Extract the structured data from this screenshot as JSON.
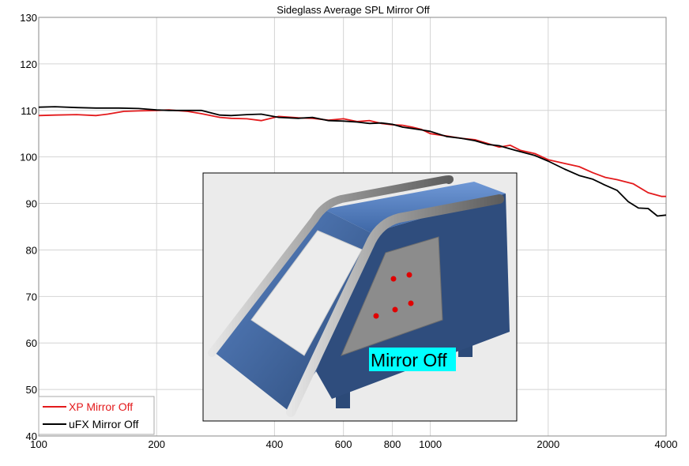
{
  "chart_data": {
    "type": "line",
    "title": "Sideglass Average SPL Mirror Off",
    "xlabel": "",
    "ylabel": "",
    "x_scale": "log",
    "xlim": [
      100,
      4000
    ],
    "ylim": [
      40,
      130
    ],
    "x_ticks": [
      100,
      200,
      400,
      600,
      800,
      1000,
      2000,
      4000
    ],
    "x_tick_labels": [
      "100",
      "200",
      "400",
      "600",
      "800",
      "1000",
      "2000",
      "4000"
    ],
    "y_ticks": [
      40,
      50,
      60,
      70,
      80,
      90,
      100,
      110,
      120,
      130
    ],
    "y_tick_labels": [
      "40",
      "50",
      "60",
      "70",
      "80",
      "90",
      "100",
      "110",
      "120",
      "130"
    ],
    "grid": true,
    "legend": "bottom-left",
    "series": [
      {
        "name": "XP Mirror Off",
        "color": "#e31a1c",
        "points": [
          [
            100,
            108.9
          ],
          [
            110,
            109.0
          ],
          [
            125,
            109.1
          ],
          [
            140,
            108.9
          ],
          [
            150,
            109.2
          ],
          [
            165,
            109.8
          ],
          [
            180,
            109.9
          ],
          [
            200,
            110.0
          ],
          [
            215,
            110.1
          ],
          [
            240,
            109.8
          ],
          [
            260,
            109.3
          ],
          [
            290,
            108.5
          ],
          [
            310,
            108.3
          ],
          [
            340,
            108.2
          ],
          [
            370,
            107.8
          ],
          [
            410,
            108.7
          ],
          [
            460,
            108.4
          ],
          [
            500,
            108.3
          ],
          [
            550,
            107.9
          ],
          [
            600,
            108.2
          ],
          [
            650,
            107.6
          ],
          [
            700,
            107.8
          ],
          [
            750,
            107.2
          ],
          [
            800,
            106.9
          ],
          [
            850,
            106.8
          ],
          [
            900,
            106.4
          ],
          [
            950,
            105.9
          ],
          [
            1000,
            105.0
          ],
          [
            1100,
            104.5
          ],
          [
            1200,
            104.0
          ],
          [
            1300,
            103.7
          ],
          [
            1400,
            102.9
          ],
          [
            1500,
            102.1
          ],
          [
            1600,
            102.5
          ],
          [
            1700,
            101.4
          ],
          [
            1850,
            100.7
          ],
          [
            2000,
            99.4
          ],
          [
            2200,
            98.6
          ],
          [
            2400,
            97.9
          ],
          [
            2600,
            96.6
          ],
          [
            2800,
            95.6
          ],
          [
            3000,
            95.1
          ],
          [
            3300,
            94.2
          ],
          [
            3600,
            92.3
          ],
          [
            3900,
            91.5
          ],
          [
            4000,
            91.5
          ]
        ]
      },
      {
        "name": "uFX Mirror Off",
        "color": "#000000",
        "points": [
          [
            100,
            110.7
          ],
          [
            110,
            110.8
          ],
          [
            125,
            110.6
          ],
          [
            140,
            110.5
          ],
          [
            160,
            110.5
          ],
          [
            180,
            110.4
          ],
          [
            200,
            110.1
          ],
          [
            215,
            110.0
          ],
          [
            240,
            110.0
          ],
          [
            260,
            110.0
          ],
          [
            290,
            109.0
          ],
          [
            310,
            108.9
          ],
          [
            340,
            109.1
          ],
          [
            370,
            109.2
          ],
          [
            410,
            108.5
          ],
          [
            460,
            108.3
          ],
          [
            500,
            108.5
          ],
          [
            550,
            107.8
          ],
          [
            600,
            107.7
          ],
          [
            650,
            107.5
          ],
          [
            700,
            107.2
          ],
          [
            750,
            107.3
          ],
          [
            800,
            107.0
          ],
          [
            850,
            106.4
          ],
          [
            900,
            106.1
          ],
          [
            950,
            105.8
          ],
          [
            1000,
            105.5
          ],
          [
            1100,
            104.4
          ],
          [
            1200,
            104.0
          ],
          [
            1300,
            103.5
          ],
          [
            1400,
            102.7
          ],
          [
            1500,
            102.4
          ],
          [
            1650,
            101.4
          ],
          [
            1850,
            100.3
          ],
          [
            2000,
            99.1
          ],
          [
            2200,
            97.4
          ],
          [
            2400,
            96.0
          ],
          [
            2600,
            95.2
          ],
          [
            2800,
            93.9
          ],
          [
            3000,
            92.8
          ],
          [
            3200,
            90.4
          ],
          [
            3400,
            89.0
          ],
          [
            3600,
            88.9
          ],
          [
            3800,
            87.3
          ],
          [
            4000,
            87.5
          ]
        ]
      }
    ],
    "inset": {
      "label": "Mirror Off",
      "label_background": "#00ffff"
    }
  }
}
